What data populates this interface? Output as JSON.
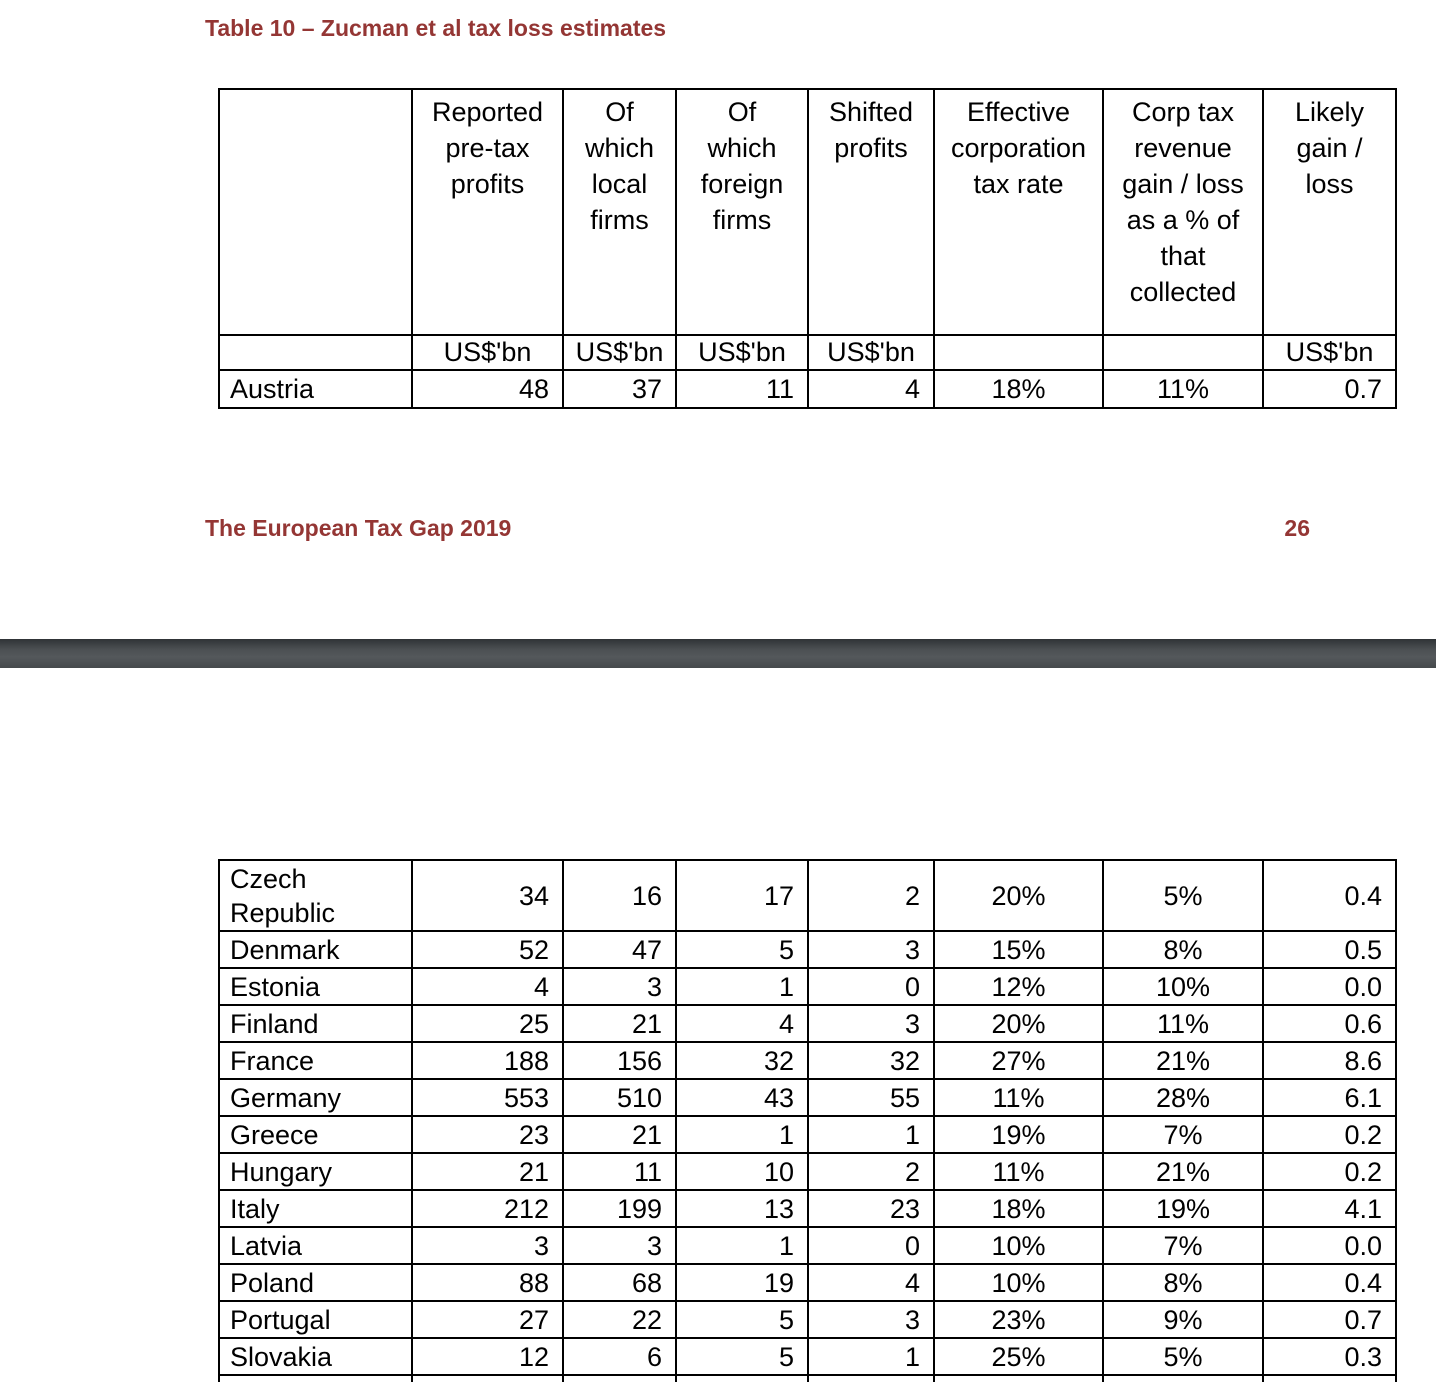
{
  "page1": {
    "title": "Table 10 – Zucman et al tax loss estimates",
    "footer": {
      "text": "The European Tax Gap 2019",
      "page_number": "26"
    }
  },
  "table": {
    "columns": [
      "",
      "Reported pre-tax profits",
      "Of which local firms",
      "Of which foreign firms",
      "Shifted profits",
      "Effective corporation tax rate",
      "Corp tax revenue gain / loss as a % of that collected",
      "Likely gain / loss"
    ],
    "units_row": [
      "",
      "US$'bn",
      "US$'bn",
      "US$'bn",
      "US$'bn",
      "",
      "",
      "US$'bn"
    ],
    "rows_page1": [
      {
        "country": "Austria",
        "values": [
          "48",
          "37",
          "11",
          "4",
          "18%",
          "11%",
          "0.7"
        ]
      }
    ],
    "rows_page2": [
      {
        "country": "Czech Republic",
        "values": [
          "34",
          "16",
          "17",
          "2",
          "20%",
          "5%",
          "0.4"
        ]
      },
      {
        "country": "Denmark",
        "values": [
          "52",
          "47",
          "5",
          "3",
          "15%",
          "8%",
          "0.5"
        ]
      },
      {
        "country": "Estonia",
        "values": [
          "4",
          "3",
          "1",
          "0",
          "12%",
          "10%",
          "0.0"
        ]
      },
      {
        "country": "Finland",
        "values": [
          "25",
          "21",
          "4",
          "3",
          "20%",
          "11%",
          "0.6"
        ]
      },
      {
        "country": "France",
        "values": [
          "188",
          "156",
          "32",
          "32",
          "27%",
          "21%",
          "8.6"
        ]
      },
      {
        "country": "Germany",
        "values": [
          "553",
          "510",
          "43",
          "55",
          "11%",
          "28%",
          "6.1"
        ]
      },
      {
        "country": "Greece",
        "values": [
          "23",
          "21",
          "1",
          "1",
          "19%",
          "7%",
          "0.2"
        ]
      },
      {
        "country": "Hungary",
        "values": [
          "21",
          "11",
          "10",
          "2",
          "11%",
          "21%",
          "0.2"
        ]
      },
      {
        "country": "Italy",
        "values": [
          "212",
          "199",
          "13",
          "23",
          "18%",
          "19%",
          "4.1"
        ]
      },
      {
        "country": "Latvia",
        "values": [
          "3",
          "3",
          "1",
          "0",
          "10%",
          "7%",
          "0.0"
        ]
      },
      {
        "country": "Poland",
        "values": [
          "88",
          "68",
          "19",
          "4",
          "10%",
          "8%",
          "0.4"
        ]
      },
      {
        "country": "Portugal",
        "values": [
          "27",
          "22",
          "5",
          "3",
          "23%",
          "9%",
          "0.7"
        ]
      },
      {
        "country": "Slovakia",
        "values": [
          "12",
          "6",
          "5",
          "1",
          "25%",
          "5%",
          "0.3"
        ]
      }
    ]
  },
  "colors": {
    "heading_text": "#943634",
    "table_border": "#000000",
    "page_separator": "#45494c",
    "page_background": "#ffffff"
  }
}
